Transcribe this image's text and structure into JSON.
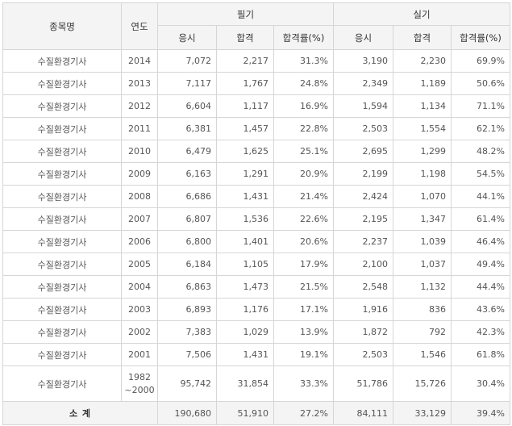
{
  "headers": {
    "subject": "종목명",
    "year": "연도",
    "written": "필기",
    "practical": "실기",
    "applicants": "응시",
    "passed": "합격",
    "pass_rate": "합격률(%)"
  },
  "rows": [
    {
      "subject": "수질환경기사",
      "year": "2014",
      "w_app": "7,072",
      "w_pass": "2,217",
      "w_rate": "31.3%",
      "p_app": "3,190",
      "p_pass": "2,230",
      "p_rate": "69.9%"
    },
    {
      "subject": "수질환경기사",
      "year": "2013",
      "w_app": "7,117",
      "w_pass": "1,767",
      "w_rate": "24.8%",
      "p_app": "2,349",
      "p_pass": "1,189",
      "p_rate": "50.6%"
    },
    {
      "subject": "수질환경기사",
      "year": "2012",
      "w_app": "6,604",
      "w_pass": "1,117",
      "w_rate": "16.9%",
      "p_app": "1,594",
      "p_pass": "1,134",
      "p_rate": "71.1%"
    },
    {
      "subject": "수질환경기사",
      "year": "2011",
      "w_app": "6,381",
      "w_pass": "1,457",
      "w_rate": "22.8%",
      "p_app": "2,503",
      "p_pass": "1,554",
      "p_rate": "62.1%"
    },
    {
      "subject": "수질환경기사",
      "year": "2010",
      "w_app": "6,479",
      "w_pass": "1,625",
      "w_rate": "25.1%",
      "p_app": "2,695",
      "p_pass": "1,299",
      "p_rate": "48.2%"
    },
    {
      "subject": "수질환경기사",
      "year": "2009",
      "w_app": "6,163",
      "w_pass": "1,291",
      "w_rate": "20.9%",
      "p_app": "2,199",
      "p_pass": "1,198",
      "p_rate": "54.5%"
    },
    {
      "subject": "수질환경기사",
      "year": "2008",
      "w_app": "6,686",
      "w_pass": "1,431",
      "w_rate": "21.4%",
      "p_app": "2,424",
      "p_pass": "1,070",
      "p_rate": "44.1%"
    },
    {
      "subject": "수질환경기사",
      "year": "2007",
      "w_app": "6,807",
      "w_pass": "1,536",
      "w_rate": "22.6%",
      "p_app": "2,195",
      "p_pass": "1,347",
      "p_rate": "61.4%"
    },
    {
      "subject": "수질환경기사",
      "year": "2006",
      "w_app": "6,800",
      "w_pass": "1,401",
      "w_rate": "20.6%",
      "p_app": "2,237",
      "p_pass": "1,039",
      "p_rate": "46.4%"
    },
    {
      "subject": "수질환경기사",
      "year": "2005",
      "w_app": "6,184",
      "w_pass": "1,105",
      "w_rate": "17.9%",
      "p_app": "2,100",
      "p_pass": "1,037",
      "p_rate": "49.4%"
    },
    {
      "subject": "수질환경기사",
      "year": "2004",
      "w_app": "6,863",
      "w_pass": "1,473",
      "w_rate": "21.5%",
      "p_app": "2,548",
      "p_pass": "1,132",
      "p_rate": "44.4%"
    },
    {
      "subject": "수질환경기사",
      "year": "2003",
      "w_app": "6,893",
      "w_pass": "1,176",
      "w_rate": "17.1%",
      "p_app": "1,916",
      "p_pass": "836",
      "p_rate": "43.6%"
    },
    {
      "subject": "수질환경기사",
      "year": "2002",
      "w_app": "7,383",
      "w_pass": "1,029",
      "w_rate": "13.9%",
      "p_app": "1,872",
      "p_pass": "792",
      "p_rate": "42.3%"
    },
    {
      "subject": "수질환경기사",
      "year": "2001",
      "w_app": "7,506",
      "w_pass": "1,431",
      "w_rate": "19.1%",
      "p_app": "2,503",
      "p_pass": "1,546",
      "p_rate": "61.8%"
    },
    {
      "subject": "수질환경기사",
      "year": "1982\n~2000",
      "w_app": "95,742",
      "w_pass": "31,854",
      "w_rate": "33.3%",
      "p_app": "51,786",
      "p_pass": "15,726",
      "p_rate": "30.4%"
    }
  ],
  "total": {
    "label": "소 계",
    "w_app": "190,680",
    "w_pass": "51,910",
    "w_rate": "27.2%",
    "p_app": "84,111",
    "p_pass": "33,129",
    "p_rate": "39.4%"
  }
}
